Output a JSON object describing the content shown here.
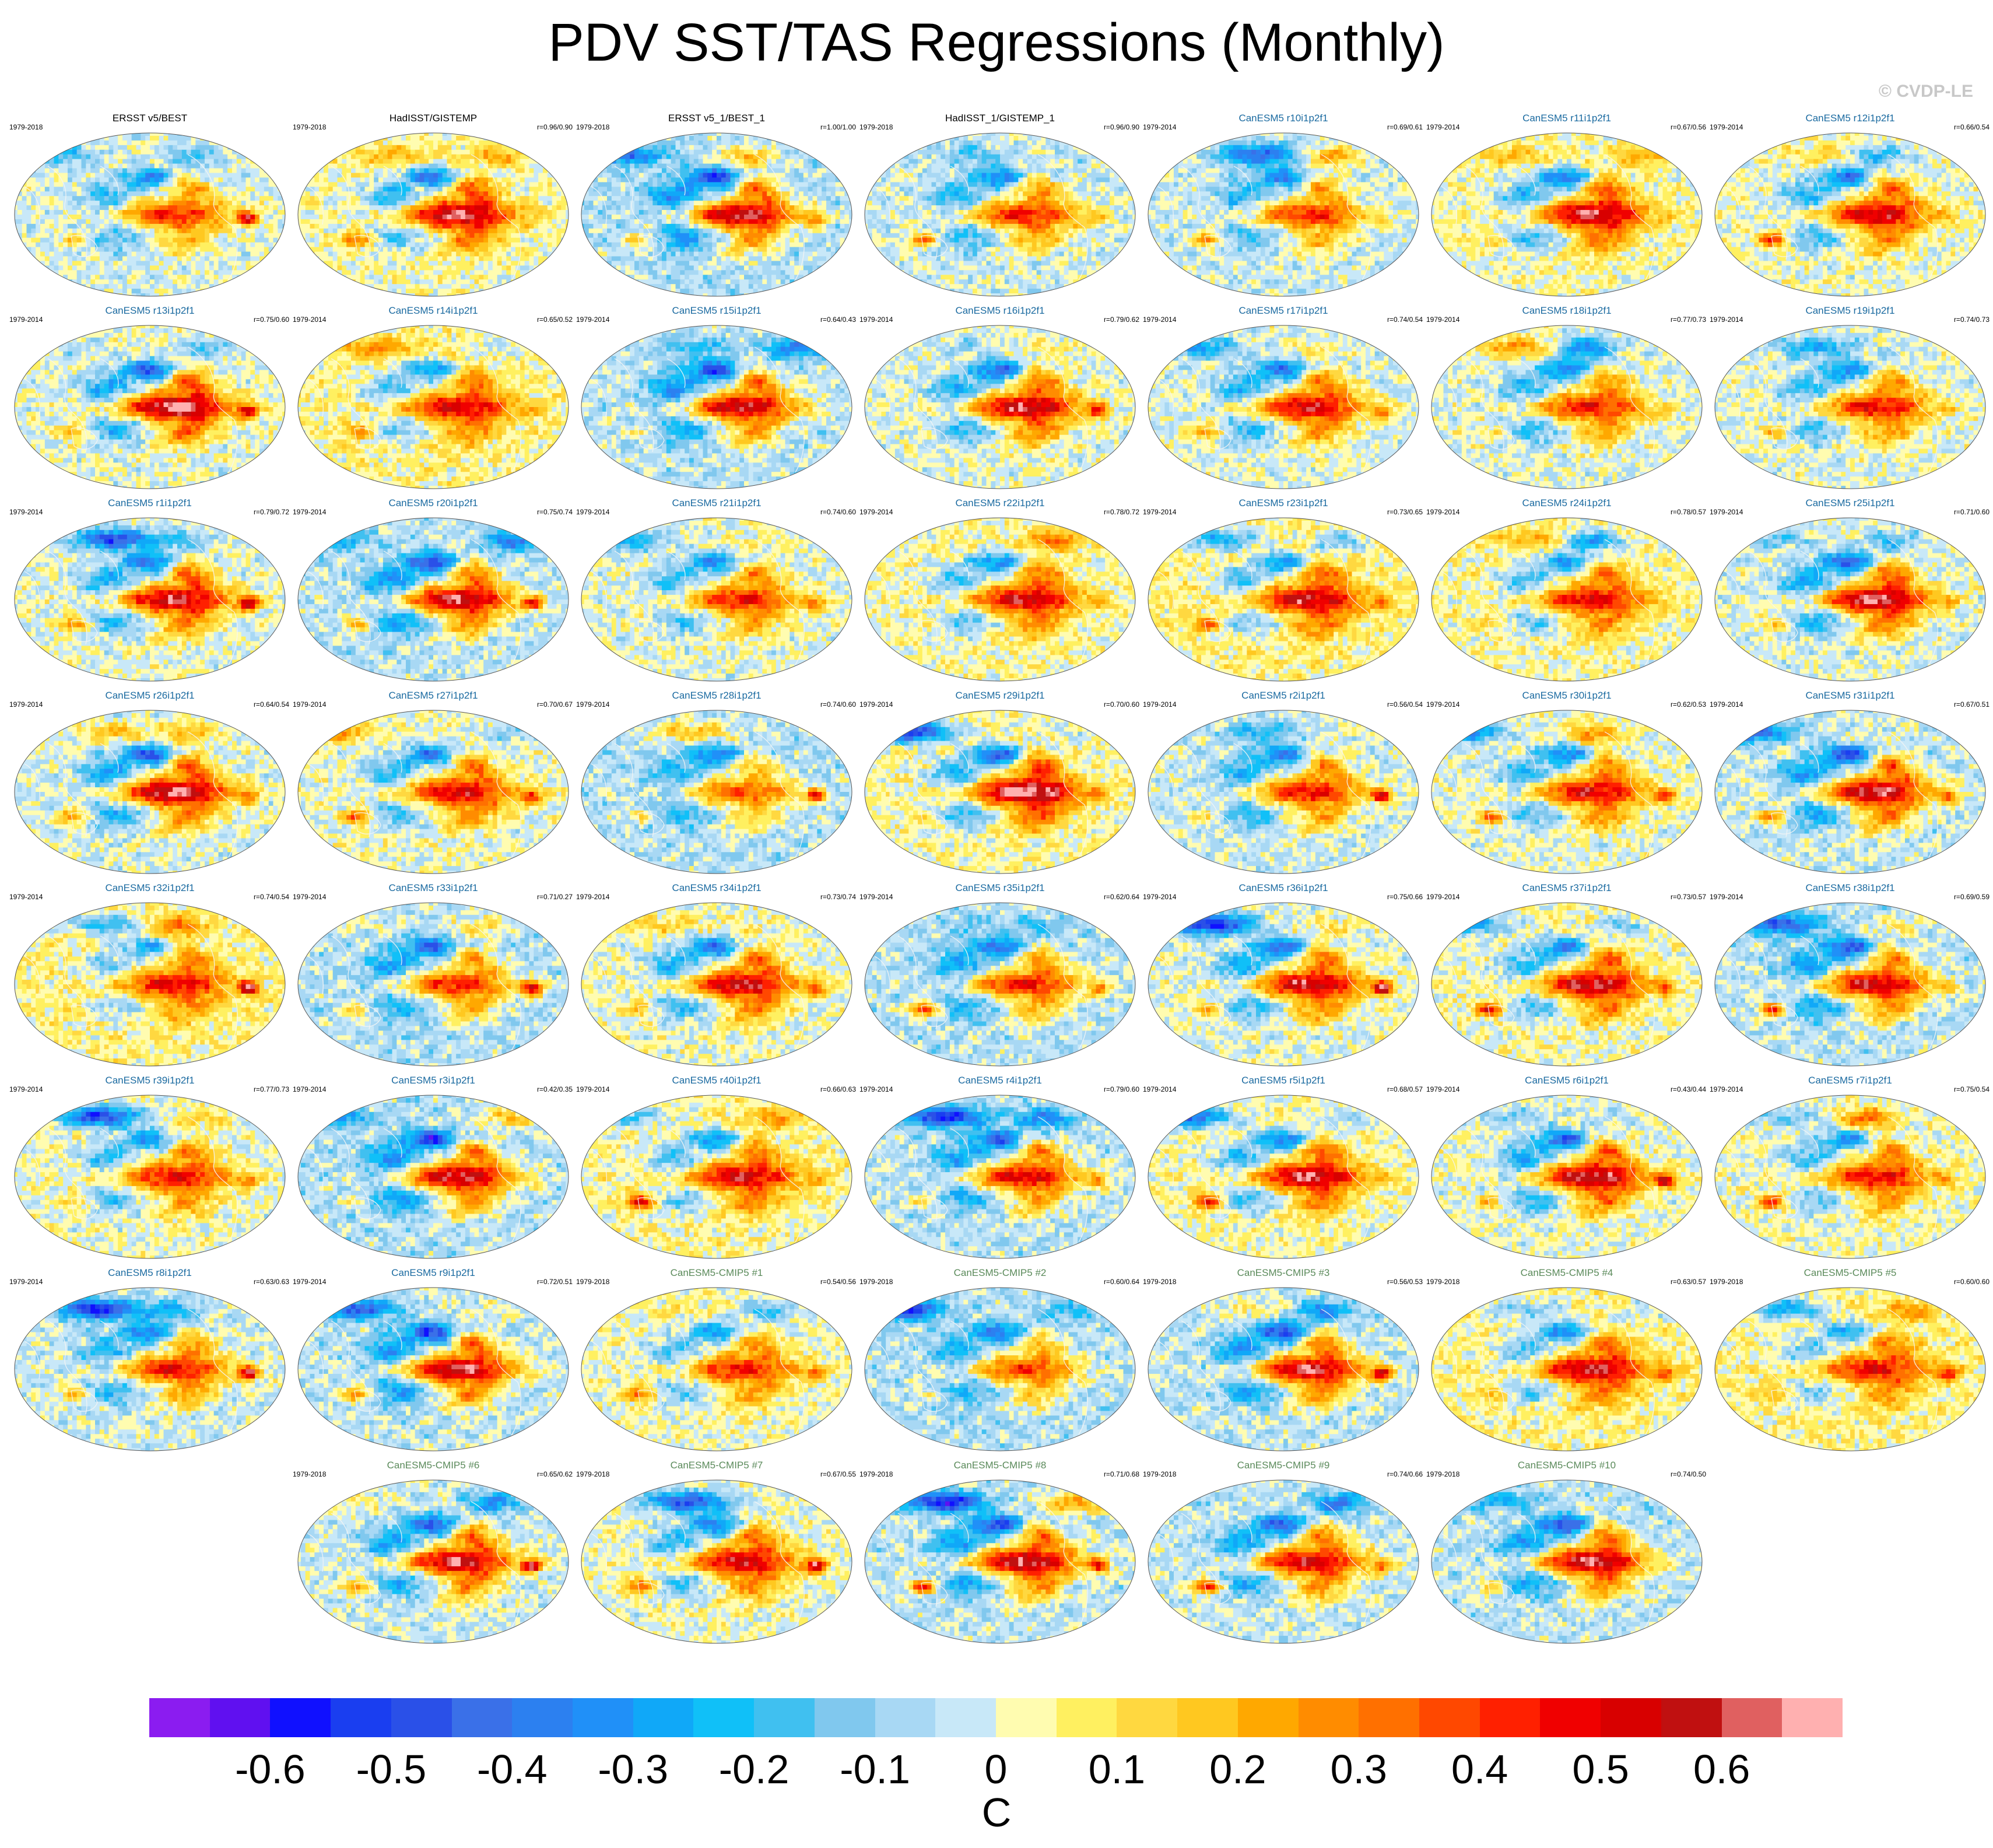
{
  "header": {
    "title": "PDV SST/TAS Regressions (Monthly)",
    "copyright": "© CVDP-LE"
  },
  "chart_data": {
    "type": "heatmap",
    "title": "PDV SST/TAS Regressions (Monthly)",
    "units": "C",
    "colorbar": {
      "ticks": [
        "-0.6",
        "-0.5",
        "-0.4",
        "-0.3",
        "-0.2",
        "-0.1",
        "0",
        "0.1",
        "0.2",
        "0.3",
        "0.4",
        "0.5",
        "0.6"
      ],
      "tick_values": [
        -0.6,
        -0.5,
        -0.4,
        -0.3,
        -0.2,
        -0.1,
        0,
        0.1,
        0.2,
        0.3,
        0.4,
        0.5,
        0.6
      ],
      "range": [
        -0.7,
        0.7
      ],
      "step": 0.05,
      "colors": [
        "#8b1cf0",
        "#6010f0",
        "#1010ff",
        "#1a3ef0",
        "#2a50e8",
        "#3a70e8",
        "#2c80f0",
        "#2090f8",
        "#10a8f8",
        "#10c0f8",
        "#40c0f0",
        "#80c8ee",
        "#a8d8f4",
        "#c8e8f8",
        "#fffcb0",
        "#fff060",
        "#ffd840",
        "#ffc820",
        "#ffa800",
        "#ff8c00",
        "#ff7000",
        "#ff4800",
        "#ff2000",
        "#f00000",
        "#d80000",
        "#c01010",
        "#e06060",
        "#ffb0b0"
      ]
    },
    "panels": [
      {
        "title": "ERSST v5/BEST",
        "period": "1979-2018",
        "corr": "",
        "kind": "obs"
      },
      {
        "title": "HadISST/GISTEMP",
        "period": "1979-2018",
        "corr": "r=0.96/0.90",
        "kind": "obs"
      },
      {
        "title": "ERSST v5_1/BEST_1",
        "period": "1979-2018",
        "corr": "r=1.00/1.00",
        "kind": "obs"
      },
      {
        "title": "HadISST_1/GISTEMP_1",
        "period": "1979-2018",
        "corr": "r=0.96/0.90",
        "kind": "obs"
      },
      {
        "title": "CanESM5 r10i1p2f1",
        "period": "1979-2014",
        "corr": "r=0.69/0.61",
        "kind": "mem"
      },
      {
        "title": "CanESM5 r11i1p2f1",
        "period": "1979-2014",
        "corr": "r=0.67/0.56",
        "kind": "mem"
      },
      {
        "title": "CanESM5 r12i1p2f1",
        "period": "1979-2014",
        "corr": "r=0.66/0.54",
        "kind": "mem"
      },
      {
        "title": "CanESM5 r13i1p2f1",
        "period": "1979-2014",
        "corr": "r=0.75/0.60",
        "kind": "mem"
      },
      {
        "title": "CanESM5 r14i1p2f1",
        "period": "1979-2014",
        "corr": "r=0.65/0.52",
        "kind": "mem"
      },
      {
        "title": "CanESM5 r15i1p2f1",
        "period": "1979-2014",
        "corr": "r=0.64/0.43",
        "kind": "mem"
      },
      {
        "title": "CanESM5 r16i1p2f1",
        "period": "1979-2014",
        "corr": "r=0.79/0.62",
        "kind": "mem"
      },
      {
        "title": "CanESM5 r17i1p2f1",
        "period": "1979-2014",
        "corr": "r=0.74/0.54",
        "kind": "mem"
      },
      {
        "title": "CanESM5 r18i1p2f1",
        "period": "1979-2014",
        "corr": "r=0.77/0.73",
        "kind": "mem"
      },
      {
        "title": "CanESM5 r19i1p2f1",
        "period": "1979-2014",
        "corr": "r=0.74/0.73",
        "kind": "mem"
      },
      {
        "title": "CanESM5 r1i1p2f1",
        "period": "1979-2014",
        "corr": "r=0.79/0.72",
        "kind": "mem"
      },
      {
        "title": "CanESM5 r20i1p2f1",
        "period": "1979-2014",
        "corr": "r=0.75/0.74",
        "kind": "mem"
      },
      {
        "title": "CanESM5 r21i1p2f1",
        "period": "1979-2014",
        "corr": "r=0.74/0.60",
        "kind": "mem"
      },
      {
        "title": "CanESM5 r22i1p2f1",
        "period": "1979-2014",
        "corr": "r=0.78/0.72",
        "kind": "mem"
      },
      {
        "title": "CanESM5 r23i1p2f1",
        "period": "1979-2014",
        "corr": "r=0.73/0.65",
        "kind": "mem"
      },
      {
        "title": "CanESM5 r24i1p2f1",
        "period": "1979-2014",
        "corr": "r=0.78/0.57",
        "kind": "mem"
      },
      {
        "title": "CanESM5 r25i1p2f1",
        "period": "1979-2014",
        "corr": "r=0.71/0.60",
        "kind": "mem"
      },
      {
        "title": "CanESM5 r26i1p2f1",
        "period": "1979-2014",
        "corr": "r=0.64/0.54",
        "kind": "mem"
      },
      {
        "title": "CanESM5 r27i1p2f1",
        "period": "1979-2014",
        "corr": "r=0.70/0.67",
        "kind": "mem"
      },
      {
        "title": "CanESM5 r28i1p2f1",
        "period": "1979-2014",
        "corr": "r=0.74/0.60",
        "kind": "mem"
      },
      {
        "title": "CanESM5 r29i1p2f1",
        "period": "1979-2014",
        "corr": "r=0.70/0.60",
        "kind": "mem"
      },
      {
        "title": "CanESM5 r2i1p2f1",
        "period": "1979-2014",
        "corr": "r=0.56/0.54",
        "kind": "mem"
      },
      {
        "title": "CanESM5 r30i1p2f1",
        "period": "1979-2014",
        "corr": "r=0.62/0.53",
        "kind": "mem"
      },
      {
        "title": "CanESM5 r31i1p2f1",
        "period": "1979-2014",
        "corr": "r=0.67/0.51",
        "kind": "mem"
      },
      {
        "title": "CanESM5 r32i1p2f1",
        "period": "1979-2014",
        "corr": "r=0.74/0.54",
        "kind": "mem"
      },
      {
        "title": "CanESM5 r33i1p2f1",
        "period": "1979-2014",
        "corr": "r=0.71/0.27",
        "kind": "mem"
      },
      {
        "title": "CanESM5 r34i1p2f1",
        "period": "1979-2014",
        "corr": "r=0.73/0.74",
        "kind": "mem"
      },
      {
        "title": "CanESM5 r35i1p2f1",
        "period": "1979-2014",
        "corr": "r=0.62/0.64",
        "kind": "mem"
      },
      {
        "title": "CanESM5 r36i1p2f1",
        "period": "1979-2014",
        "corr": "r=0.75/0.66",
        "kind": "mem"
      },
      {
        "title": "CanESM5 r37i1p2f1",
        "period": "1979-2014",
        "corr": "r=0.73/0.57",
        "kind": "mem"
      },
      {
        "title": "CanESM5 r38i1p2f1",
        "period": "1979-2014",
        "corr": "r=0.69/0.59",
        "kind": "mem"
      },
      {
        "title": "CanESM5 r39i1p2f1",
        "period": "1979-2014",
        "corr": "r=0.77/0.73",
        "kind": "mem"
      },
      {
        "title": "CanESM5 r3i1p2f1",
        "period": "1979-2014",
        "corr": "r=0.42/0.35",
        "kind": "mem"
      },
      {
        "title": "CanESM5 r40i1p2f1",
        "period": "1979-2014",
        "corr": "r=0.66/0.63",
        "kind": "mem"
      },
      {
        "title": "CanESM5 r4i1p2f1",
        "period": "1979-2014",
        "corr": "r=0.79/0.60",
        "kind": "mem"
      },
      {
        "title": "CanESM5 r5i1p2f1",
        "period": "1979-2014",
        "corr": "r=0.68/0.57",
        "kind": "mem"
      },
      {
        "title": "CanESM5 r6i1p2f1",
        "period": "1979-2014",
        "corr": "r=0.43/0.44",
        "kind": "mem"
      },
      {
        "title": "CanESM5 r7i1p2f1",
        "period": "1979-2014",
        "corr": "r=0.75/0.54",
        "kind": "mem"
      },
      {
        "title": "CanESM5 r8i1p2f1",
        "period": "1979-2014",
        "corr": "r=0.63/0.63",
        "kind": "mem"
      },
      {
        "title": "CanESM5 r9i1p2f1",
        "period": "1979-2014",
        "corr": "r=0.72/0.51",
        "kind": "mem"
      },
      {
        "title": "CanESM5-CMIP5 #1",
        "period": "1979-2018",
        "corr": "r=0.54/0.56",
        "kind": "cmip"
      },
      {
        "title": "CanESM5-CMIP5 #2",
        "period": "1979-2018",
        "corr": "r=0.60/0.64",
        "kind": "cmip"
      },
      {
        "title": "CanESM5-CMIP5 #3",
        "period": "1979-2018",
        "corr": "r=0.56/0.53",
        "kind": "cmip"
      },
      {
        "title": "CanESM5-CMIP5 #4",
        "period": "1979-2018",
        "corr": "r=0.63/0.57",
        "kind": "cmip"
      },
      {
        "title": "CanESM5-CMIP5 #5",
        "period": "1979-2018",
        "corr": "r=0.60/0.60",
        "kind": "cmip"
      },
      {
        "title": "CanESM5-CMIP5 #6",
        "period": "1979-2018",
        "corr": "r=0.65/0.62",
        "kind": "cmip"
      },
      {
        "title": "CanESM5-CMIP5 #7",
        "period": "1979-2018",
        "corr": "r=0.67/0.55",
        "kind": "cmip"
      },
      {
        "title": "CanESM5-CMIP5 #8",
        "period": "1979-2018",
        "corr": "r=0.71/0.68",
        "kind": "cmip"
      },
      {
        "title": "CanESM5-CMIP5 #9",
        "period": "1979-2018",
        "corr": "r=0.74/0.66",
        "kind": "cmip"
      },
      {
        "title": "CanESM5-CMIP5 #10",
        "period": "1979-2018",
        "corr": "r=0.74/0.50",
        "kind": "cmip"
      }
    ]
  }
}
